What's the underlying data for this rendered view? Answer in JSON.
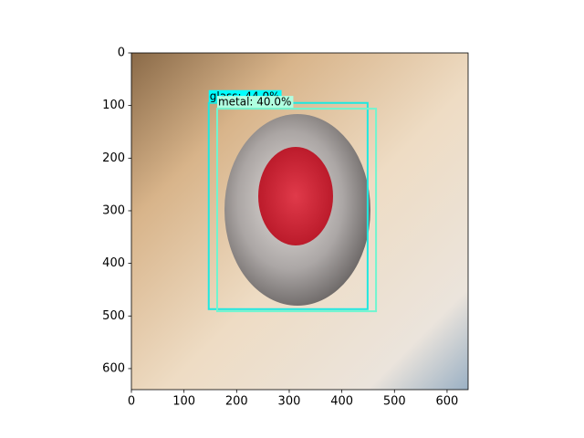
{
  "chart_data": {
    "type": "detection",
    "xlim": [
      0,
      640
    ],
    "ylim": [
      640,
      0
    ],
    "xticks": [
      0,
      100,
      200,
      300,
      400,
      500,
      600
    ],
    "yticks": [
      0,
      100,
      200,
      300,
      400,
      500,
      600
    ],
    "boxes": [
      {
        "label": "glass: 44.0%",
        "color": "#1ee8e0",
        "label_color": "#00ffff",
        "x": [
          147,
          449
        ],
        "y": [
          95,
          487
        ]
      },
      {
        "label": "metal: 40.0%",
        "color": "#70f5d0",
        "label_color": "#b0ffe0",
        "x": [
          163,
          465
        ],
        "y": [
          106,
          491
        ]
      }
    ]
  }
}
